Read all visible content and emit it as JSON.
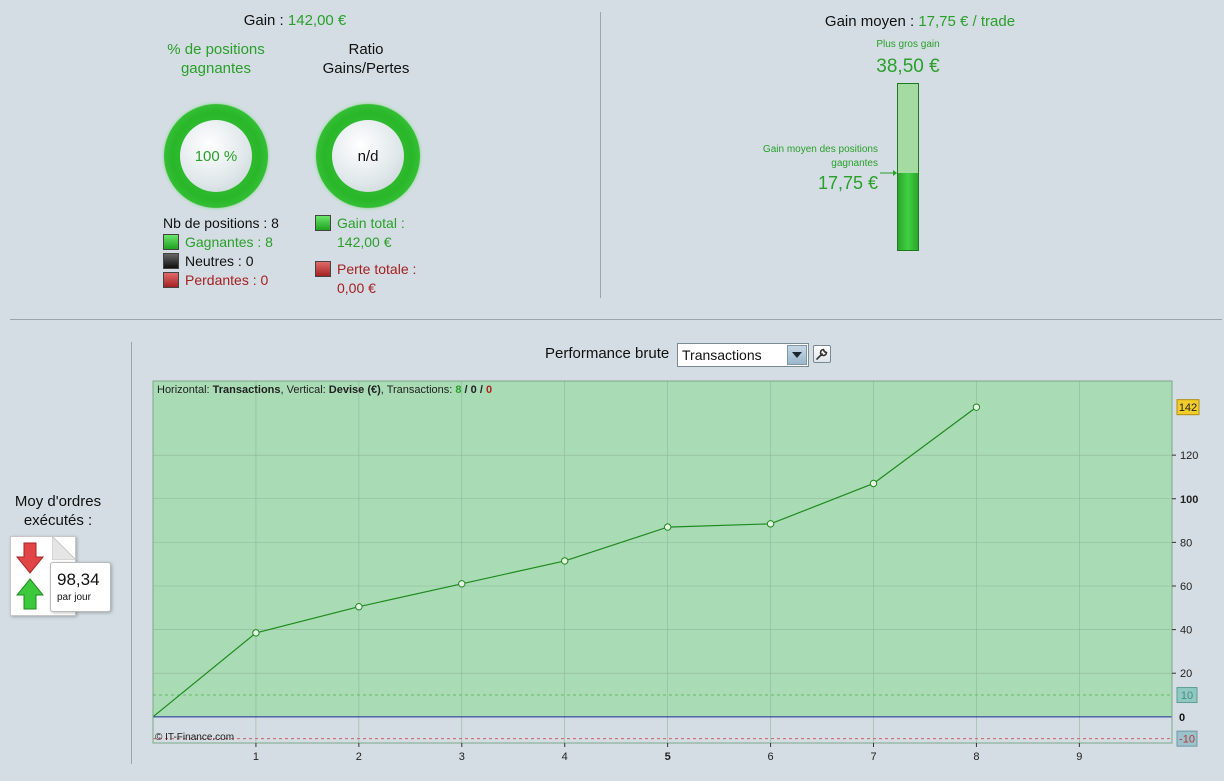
{
  "summary": {
    "gain_label": "Gain : ",
    "gain_value": "142,00 €",
    "pct_title": "% de positions gagnantes",
    "pct_value": "100 %",
    "ratio_title": "Ratio Gains/Pertes",
    "ratio_value": "n/d",
    "nb_positions": "Nb de positions : 8",
    "gagnantes": "Gagnantes : 8",
    "neutres": "Neutres : 0",
    "perdantes": "Perdantes : 0",
    "gain_total_label": "Gain total :",
    "gain_total_value": "142,00 €",
    "perte_totale_label": "Perte totale :",
    "perte_totale_value": "0,00 €",
    "colors": {
      "green": "#2aa02a",
      "red": "#a62020"
    }
  },
  "gain_moyen": {
    "label": "Gain moyen : ",
    "value": "17,75 € / trade",
    "plus_gros_gain_label": "Plus gros gain",
    "plus_gros_gain_value": "38,50 €",
    "moyen_gagnantes_label_1": "Gain moyen des positions",
    "moyen_gagnantes_label_2": "gagnantes",
    "moyen_gagnantes_value": "17,75 €",
    "bar_fill_fraction": 0.461
  },
  "orders": {
    "title_1": "Moy d'ordres",
    "title_2": "exécutés :",
    "value": "98,34",
    "unit": "par jour",
    "icons": [
      "arrow-down-red-icon",
      "arrow-up-green-icon"
    ]
  },
  "chart_controls": {
    "label": "Performance brute",
    "select_value": "Transactions",
    "options_icon": "wrench-icon"
  },
  "chart_info": {
    "horizontal_label": "Horizontal: ",
    "horizontal_value": "Transactions",
    "vertical_label": ", Vertical: ",
    "vertical_value": "Devise (€)",
    "transactions_label": ", Transactions: ",
    "tx_wins": "8",
    "tx_sep1": " / ",
    "tx_neutral": "0",
    "tx_sep2": " / ",
    "tx_losses": "0",
    "copyright": "© IT-Finance.com"
  },
  "chart_data": {
    "type": "line",
    "x": [
      0,
      1,
      2,
      3,
      4,
      5,
      6,
      7,
      8
    ],
    "series": [
      {
        "values": [
          0,
          38.5,
          50.5,
          61,
          71.5,
          87,
          88.5,
          107,
          142
        ]
      }
    ],
    "xticks": [
      "1",
      "2",
      "3",
      "4",
      "5",
      "6",
      "7",
      "8",
      "9"
    ],
    "yticks": [
      "20",
      "40",
      "60",
      "80",
      "100",
      "120"
    ],
    "xlim": [
      0,
      9.9
    ],
    "ylim": [
      -12,
      154
    ],
    "zero_label": "0",
    "last_value_badge": "142",
    "threshold_high": 10,
    "threshold_high_label": "10",
    "threshold_low": -10,
    "threshold_low_label": "-10",
    "grid": true,
    "colors": {
      "line": "#1f8a1f",
      "area": "#a9dbb4",
      "zero": "#1b2a9a"
    }
  }
}
